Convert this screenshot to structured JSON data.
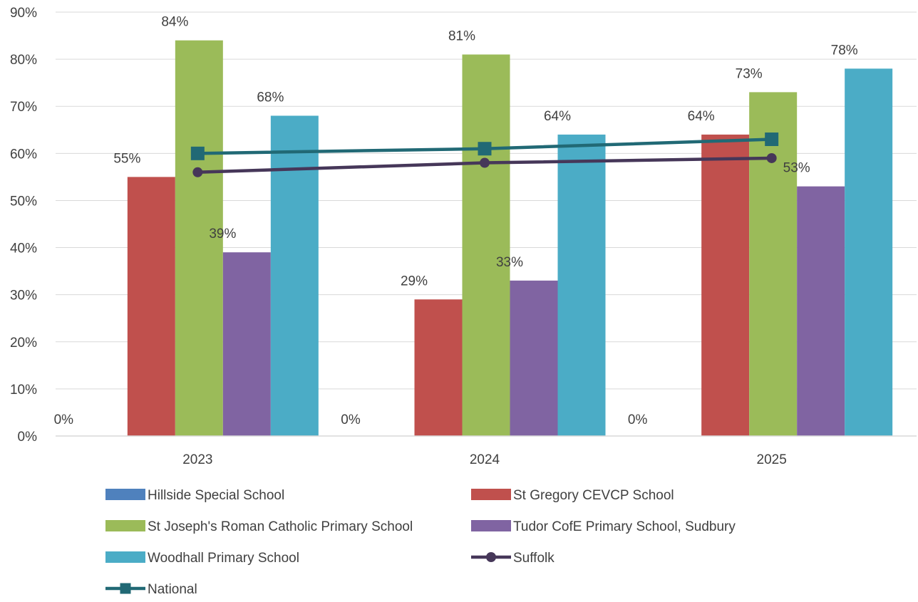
{
  "chart_data": {
    "type": "bar",
    "categories": [
      "2023",
      "2024",
      "2025"
    ],
    "series": [
      {
        "name": "Hillside Special School",
        "type": "bar",
        "color": "#4F81BD",
        "values": [
          0,
          0,
          0
        ],
        "labels": [
          "0%",
          "0%",
          "0%"
        ]
      },
      {
        "name": "St Gregory CEVCP School",
        "type": "bar",
        "color": "#C0504D",
        "values": [
          55,
          29,
          64
        ],
        "labels": [
          "55%",
          "29%",
          "64%"
        ]
      },
      {
        "name": "St Joseph's Roman Catholic Primary School",
        "type": "bar",
        "color": "#9BBB59",
        "values": [
          84,
          81,
          73
        ],
        "labels": [
          "84%",
          "81%",
          "73%"
        ]
      },
      {
        "name": "Tudor CofE Primary School, Sudbury",
        "type": "bar",
        "color": "#8064A2",
        "values": [
          39,
          33,
          53
        ],
        "labels": [
          "39%",
          "33%",
          "53%"
        ]
      },
      {
        "name": "Woodhall Primary School",
        "type": "bar",
        "color": "#4BACC6",
        "values": [
          68,
          64,
          78
        ],
        "labels": [
          "68%",
          "64%",
          "78%"
        ]
      },
      {
        "name": "Suffolk",
        "type": "line",
        "marker": "circle",
        "color": "#463759",
        "values": [
          56,
          58,
          59
        ]
      },
      {
        "name": "National",
        "type": "line",
        "marker": "square",
        "color": "#216975",
        "values": [
          60,
          61,
          63
        ]
      }
    ],
    "ylim": [
      0,
      90
    ],
    "yticks": [
      "0%",
      "10%",
      "20%",
      "30%",
      "40%",
      "50%",
      "60%",
      "70%",
      "80%",
      "90%"
    ],
    "title": "",
    "xlabel": "",
    "ylabel": "",
    "grid": true,
    "legend_position": "bottom"
  }
}
